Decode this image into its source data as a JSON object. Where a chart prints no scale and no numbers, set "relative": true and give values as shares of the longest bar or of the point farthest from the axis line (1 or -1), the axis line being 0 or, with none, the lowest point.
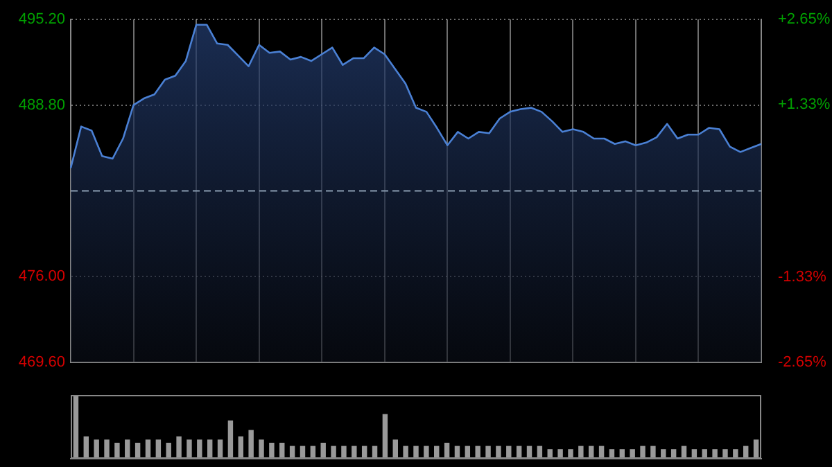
{
  "chart_data": [
    {
      "type": "area",
      "categories": [
        null,
        null,
        null,
        null,
        null,
        null,
        null,
        null,
        null,
        null,
        null,
        null,
        null,
        null,
        null,
        null,
        null,
        null,
        null,
        null,
        null,
        null,
        null,
        null,
        null,
        null,
        null,
        null,
        null,
        null,
        null,
        null,
        null,
        null,
        null,
        null,
        null,
        null,
        null,
        null,
        null,
        null,
        null,
        null,
        null,
        null,
        null,
        null,
        null,
        null,
        null,
        null,
        null,
        null,
        null,
        null,
        null,
        null,
        null,
        null,
        null,
        null,
        null,
        null,
        null,
        null,
        null
      ],
      "series": [
        {
          "color": "#4a80d4",
          "values": [
            484.1,
            487.2,
            486.9,
            485.0,
            484.8,
            486.3,
            488.8,
            489.3,
            489.6,
            490.7,
            491.0,
            492.1,
            494.8,
            494.8,
            493.4,
            493.3,
            492.5,
            491.7,
            493.3,
            492.7,
            492.8,
            492.2,
            492.4,
            492.1,
            492.6,
            493.1,
            491.8,
            492.3,
            492.3,
            493.1,
            492.6,
            491.5,
            490.4,
            488.6,
            488.3,
            487.1,
            485.8,
            486.8,
            486.3,
            486.8,
            486.7,
            487.8,
            488.3,
            488.5,
            488.6,
            488.3,
            487.6,
            486.8,
            487.0,
            486.8,
            486.3,
            486.3,
            485.9,
            486.1,
            485.8,
            486.0,
            486.4,
            487.4,
            486.3,
            486.6,
            486.6,
            487.1,
            487.0,
            485.7,
            485.3,
            485.6,
            485.9
          ]
        }
      ],
      "ylim": [
        469.6,
        495.2
      ],
      "yticks": [
        {
          "value": 469.6,
          "label": "469.60"
        },
        {
          "value": 476,
          "label": "476.00"
        },
        {
          "value": 488.8,
          "label": "488.80"
        },
        {
          "value": 495.2,
          "label": "495.20"
        }
      ],
      "y2lim": [
        -2.65,
        2.65
      ],
      "y2ticks": [
        {
          "value": -2.65,
          "label": "-2.65%"
        },
        {
          "value": -1.33,
          "label": "-1.33%"
        },
        {
          "value": 1.33,
          "label": "+1.33%"
        },
        {
          "value": 2.65,
          "label": "+2.65%"
        }
      ],
      "ref_lines": [
        {
          "axis": "y",
          "value": 482.4,
          "line_style": "dashed",
          "color": "#8a9bb0"
        }
      ],
      "grid": true,
      "tick_labels": "y",
      "legend": false,
      "marker": "none",
      "line_style": "solid"
    },
    {
      "type": "bar",
      "relative": true,
      "categories": [
        null,
        null,
        null,
        null,
        null,
        null,
        null,
        null,
        null,
        null,
        null,
        null,
        null,
        null,
        null,
        null,
        null,
        null,
        null,
        null,
        null,
        null,
        null,
        null,
        null,
        null,
        null,
        null,
        null,
        null,
        null,
        null,
        null,
        null,
        null,
        null,
        null,
        null,
        null,
        null,
        null,
        null,
        null,
        null,
        null,
        null,
        null,
        null,
        null,
        null,
        null,
        null,
        null,
        null,
        null,
        null,
        null,
        null,
        null,
        null,
        null,
        null,
        null,
        null,
        null,
        null,
        null
      ],
      "series": [
        {
          "color": "#9a9a9a",
          "values": [
            1,
            0.35,
            0.3,
            0.3,
            0.25,
            0.3,
            0.25,
            0.3,
            0.3,
            0.25,
            0.35,
            0.3,
            0.3,
            0.3,
            0.3,
            0.6,
            0.35,
            0.45,
            0.3,
            0.25,
            0.25,
            0.2,
            0.2,
            0.2,
            0.25,
            0.2,
            0.2,
            0.2,
            0.2,
            0.2,
            0.7,
            0.3,
            0.2,
            0.2,
            0.2,
            0.2,
            0.25,
            0.2,
            0.2,
            0.2,
            0.2,
            0.2,
            0.2,
            0.2,
            0.2,
            0.2,
            0.15,
            0.15,
            0.15,
            0.2,
            0.2,
            0.2,
            0.15,
            0.15,
            0.15,
            0.2,
            0.2,
            0.15,
            0.15,
            0.2,
            0.15,
            0.15,
            0.15,
            0.15,
            0.15,
            0.2,
            0.3
          ]
        }
      ],
      "grid": false,
      "tick_labels": false,
      "legend": false
    }
  ]
}
